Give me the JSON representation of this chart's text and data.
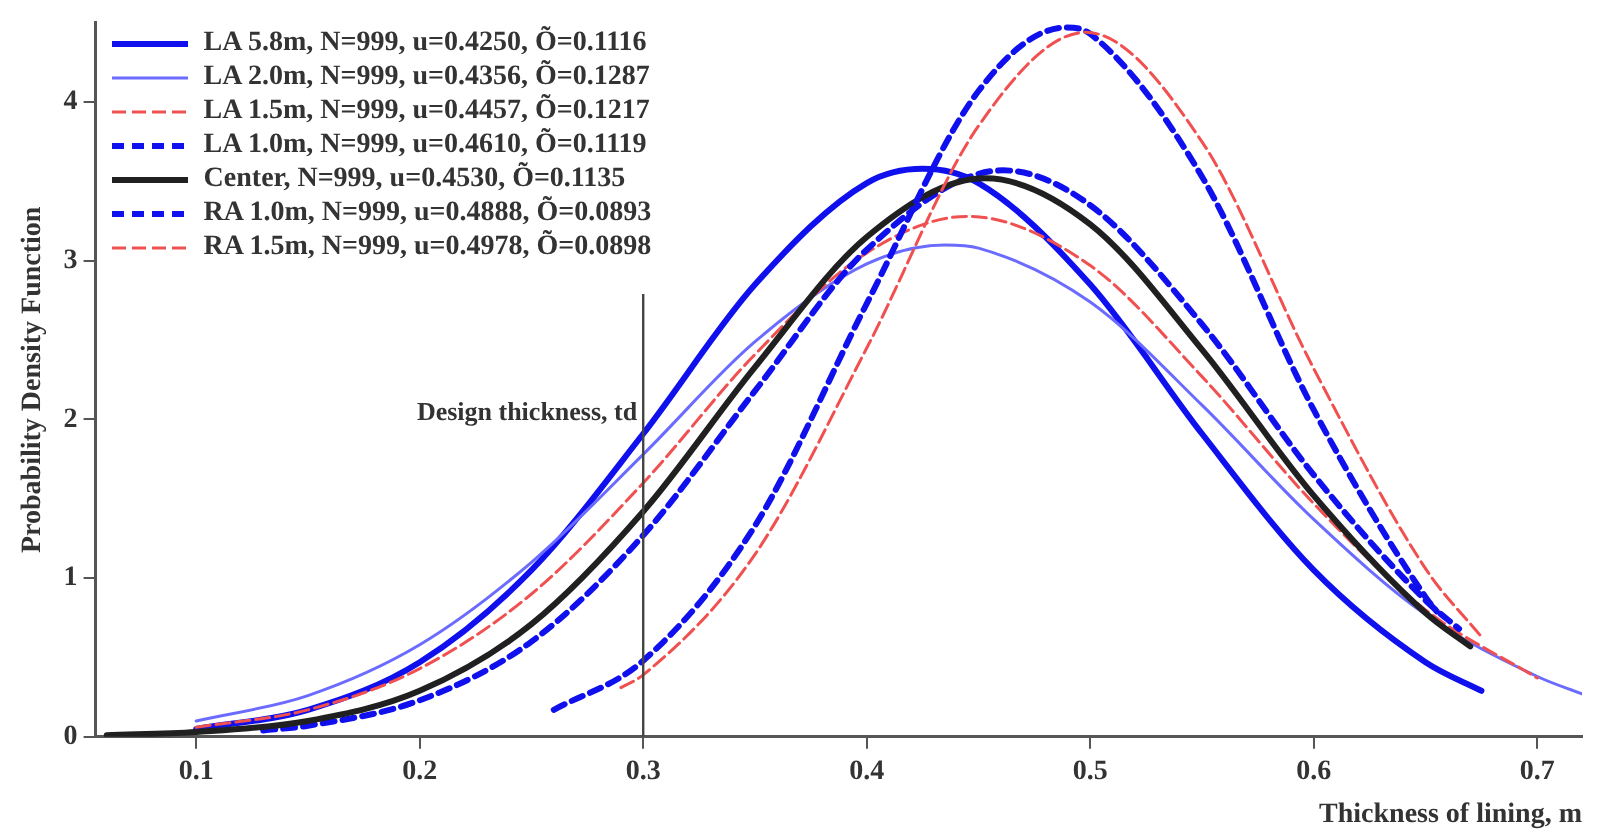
{
  "chart_data": {
    "type": "line",
    "xlabel": "Thickness of lining, m",
    "ylabel": "Probability Density Function",
    "xlim": [
      0.055,
      0.72
    ],
    "ylim": [
      0,
      4.5
    ],
    "xticks": [
      0.1,
      0.2,
      0.3,
      0.4,
      0.5,
      0.6,
      0.7
    ],
    "yticks": [
      0,
      1,
      2,
      3,
      4
    ],
    "grid": false,
    "legend": "top left",
    "marker": "none",
    "ref_lines": [
      {
        "axis": "x",
        "value": 0.3,
        "label": "Design thickness, td",
        "color": "#444444"
      }
    ],
    "series": [
      {
        "name": "LA 5.8m, N=999, u=0.4250, Õ=0.1116",
        "color": "#1010ee",
        "line_style": "solid",
        "x": [
          0.1,
          0.15,
          0.2,
          0.25,
          0.3,
          0.35,
          0.4,
          0.425,
          0.45,
          0.5,
          0.55,
          0.6,
          0.65,
          0.675
        ],
        "values": [
          0.05,
          0.17,
          0.47,
          1.05,
          1.91,
          2.85,
          3.49,
          3.58,
          3.49,
          2.85,
          1.91,
          1.05,
          0.47,
          0.29
        ]
      },
      {
        "name": "LA 2.0m, N=999, u=0.4356, Õ=0.1287",
        "color": "#6b6bff",
        "line_style": "solid",
        "x": [
          0.1,
          0.15,
          0.2,
          0.25,
          0.3,
          0.35,
          0.4,
          0.435,
          0.45,
          0.5,
          0.55,
          0.6,
          0.65,
          0.7,
          0.72
        ],
        "values": [
          0.1,
          0.26,
          0.58,
          1.1,
          1.78,
          2.49,
          2.98,
          3.1,
          3.08,
          2.74,
          2.09,
          1.37,
          0.77,
          0.38,
          0.27
        ]
      },
      {
        "name": "LA 1.5m, N=999, u=0.4457, Õ=0.1217",
        "color": "#f05050",
        "line_style": "dashed",
        "x": [
          0.1,
          0.15,
          0.2,
          0.25,
          0.3,
          0.35,
          0.4,
          0.445,
          0.5,
          0.55,
          0.6,
          0.65,
          0.7
        ],
        "values": [
          0.06,
          0.17,
          0.43,
          0.9,
          1.6,
          2.41,
          3.05,
          3.28,
          2.97,
          2.27,
          1.47,
          0.8,
          0.37
        ]
      },
      {
        "name": "LA 1.0m, N=999, u=0.4610, Õ=0.1119",
        "color": "#1010ee",
        "line_style": "dashed",
        "x": [
          0.13,
          0.15,
          0.2,
          0.25,
          0.3,
          0.35,
          0.4,
          0.461,
          0.5,
          0.55,
          0.6,
          0.65,
          0.665
        ],
        "values": [
          0.04,
          0.07,
          0.23,
          0.6,
          1.27,
          2.18,
          3.07,
          3.57,
          3.35,
          2.6,
          1.65,
          0.86,
          0.68
        ]
      },
      {
        "name": "Center, N=999, u=0.4530, Õ=0.1135",
        "color": "#202020",
        "line_style": "solid",
        "x": [
          0.06,
          0.1,
          0.15,
          0.2,
          0.25,
          0.3,
          0.35,
          0.4,
          0.453,
          0.5,
          0.55,
          0.6,
          0.65,
          0.67
        ],
        "values": [
          0.01,
          0.03,
          0.1,
          0.29,
          0.71,
          1.42,
          2.33,
          3.15,
          3.52,
          3.23,
          2.44,
          1.52,
          0.78,
          0.57
        ]
      },
      {
        "name": "RA 1.0m, N=999, u=0.4888, Õ=0.0893",
        "color": "#1010ee",
        "line_style": "dashed",
        "x": [
          0.26,
          0.3,
          0.35,
          0.4,
          0.45,
          0.489,
          0.5,
          0.55,
          0.6,
          0.65,
          0.655
        ],
        "values": [
          0.17,
          0.48,
          1.33,
          2.73,
          4.07,
          4.47,
          4.43,
          3.53,
          2.06,
          0.88,
          0.79
        ]
      },
      {
        "name": "RA 1.5m, N=999, u=0.4978, Õ=0.0898",
        "color": "#f05050",
        "line_style": "dashed",
        "x": [
          0.29,
          0.3,
          0.35,
          0.4,
          0.45,
          0.498,
          0.55,
          0.6,
          0.65,
          0.675
        ],
        "values": [
          0.31,
          0.39,
          1.15,
          2.45,
          3.85,
          4.44,
          3.75,
          2.32,
          1.06,
          0.63
        ]
      }
    ]
  }
}
